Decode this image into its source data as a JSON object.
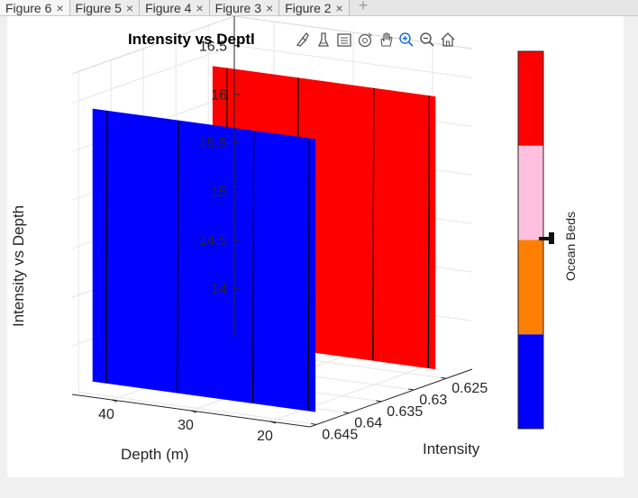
{
  "tabs": [
    {
      "label": "Figure 6",
      "active": true
    },
    {
      "label": "Figure 5",
      "active": false
    },
    {
      "label": "Figure 4",
      "active": false
    },
    {
      "label": "Figure 3",
      "active": false
    },
    {
      "label": "Figure 2",
      "active": false
    }
  ],
  "tab_close_glyph": "×",
  "add_tab_glyph": "+",
  "toolbar": {
    "tools": [
      {
        "icon": "brush-icon"
      },
      {
        "icon": "datatip-icon"
      },
      {
        "icon": "legend-icon"
      },
      {
        "icon": "rotate-3d-icon"
      },
      {
        "icon": "pan-hand-icon"
      },
      {
        "icon": "zoom-in-icon"
      },
      {
        "icon": "zoom-out-icon"
      },
      {
        "icon": "home-icon"
      }
    ]
  },
  "chart_data": {
    "type": "surface3d",
    "title": "Intensity vs Depth",
    "title_visible_text": "Intensity vs Deptl",
    "xlabel": "Intensity",
    "ylabel": "Depth (m)",
    "zlabel": "Intensity vs Depth",
    "xlim": [
      0.621,
      0.646
    ],
    "ylim": [
      15,
      45
    ],
    "zlim": [
      13.5,
      16.8
    ],
    "xticks": [
      0.625,
      0.63,
      0.635,
      0.64,
      0.645
    ],
    "yticks": [
      20,
      30,
      40
    ],
    "zticks": [
      14,
      14.5,
      15,
      15.5,
      16,
      16.5
    ],
    "series": [
      {
        "color": "#ff0000",
        "intensity": 0.6255,
        "depth": [
          16,
          44
        ],
        "z": [
          13.6,
          16.4
        ]
      },
      {
        "color": "#0000ff",
        "intensity": 0.644,
        "depth": [
          16,
          44
        ],
        "z": [
          13.6,
          16.4
        ]
      }
    ],
    "grid": true,
    "colorbar": {
      "label": "Ocean Beds",
      "colors": [
        "#0000ff",
        "#ff8000",
        "#ffc0e0",
        "#ff0000"
      ]
    }
  }
}
